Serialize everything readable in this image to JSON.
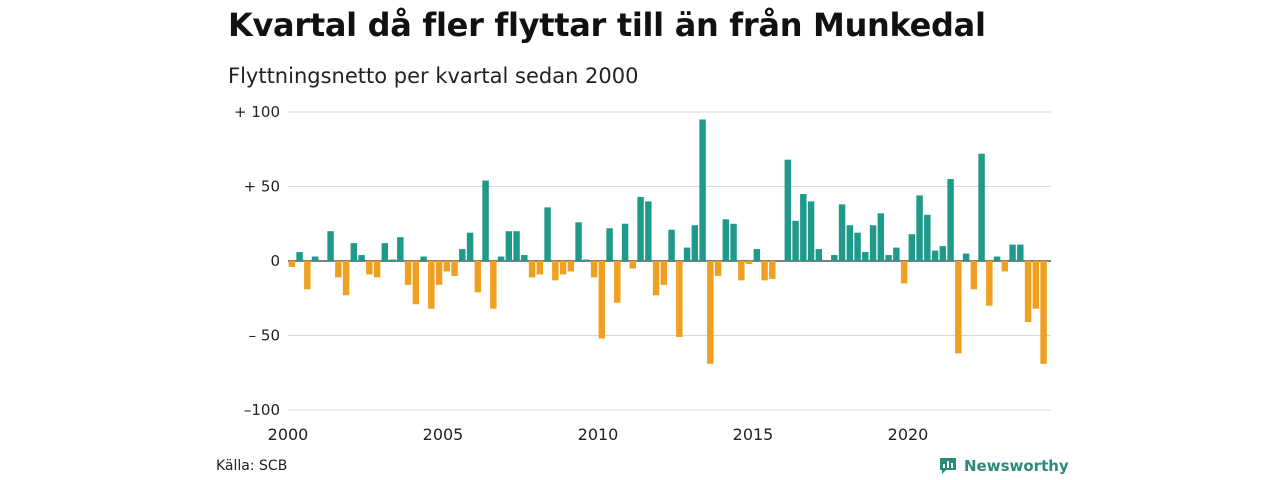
{
  "title": "Kvartal då fler flyttar till än från Munkedal",
  "subtitle": "Flyttningsnetto per kvartal sedan 2000",
  "source": "Källa: SCB",
  "brand": {
    "name": "Newsworthy",
    "icon": "newsworthy-logo-icon"
  },
  "colors": {
    "positive": "#1f9a8a",
    "negative": "#f0a020",
    "grid": "#d9d9d9",
    "axis": "#333333"
  },
  "chart_data": {
    "type": "bar",
    "title": "Kvartal då fler flyttar till än från Munkedal",
    "subtitle": "Flyttningsnetto per kvartal sedan 2000",
    "x_start": "2000-Q1",
    "x_ticks": [
      "2000",
      "2005",
      "2010",
      "2015",
      "2020"
    ],
    "y_ticks": [
      {
        "value": 100,
        "label": "+ 100"
      },
      {
        "value": 50,
        "label": "+  50"
      },
      {
        "value": 0,
        "label": "0"
      },
      {
        "value": -50,
        "label": "– 50"
      },
      {
        "value": -100,
        "label": "–100"
      }
    ],
    "ylim": [
      -100,
      100
    ],
    "grid": true,
    "values": [
      -4,
      6,
      -19,
      3,
      0,
      20,
      -11,
      -23,
      12,
      4,
      -9,
      -11,
      12,
      1,
      16,
      -16,
      -29,
      3,
      -32,
      -16,
      -7,
      -10,
      8,
      19,
      -21,
      54,
      -32,
      3,
      20,
      20,
      4,
      -11,
      -9,
      36,
      -13,
      -9,
      -7,
      26,
      1,
      -11,
      -52,
      22,
      -28,
      25,
      -5,
      43,
      40,
      -23,
      -16,
      21,
      -51,
      9,
      24,
      95,
      -69,
      -10,
      28,
      25,
      -13,
      -2,
      8,
      -13,
      -12,
      0,
      68,
      27,
      45,
      40,
      8,
      0,
      4,
      38,
      24,
      19,
      6,
      24,
      32,
      4,
      9,
      -15,
      18,
      44,
      31,
      7,
      10,
      55,
      -62,
      5,
      -19,
      72,
      -30,
      3,
      -7,
      11,
      11,
      -41,
      -32,
      -69
    ]
  }
}
